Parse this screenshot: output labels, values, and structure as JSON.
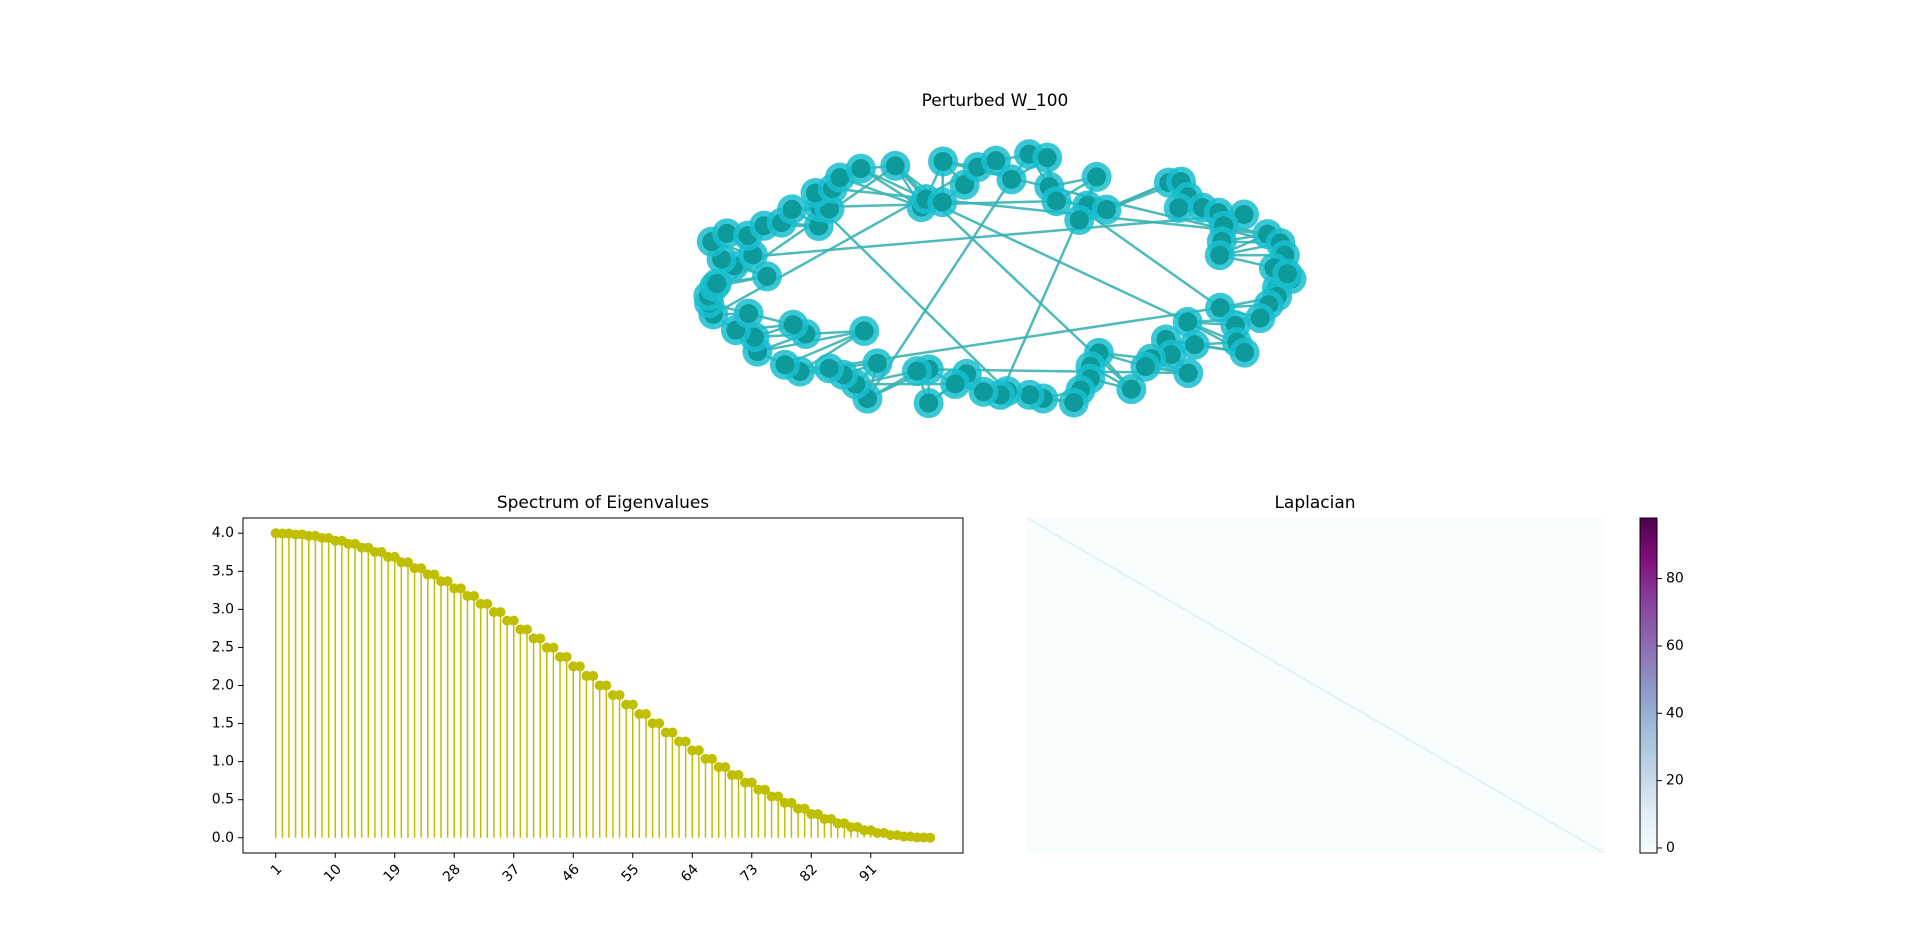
{
  "chart_data": [
    {
      "type": "network",
      "title": "Perturbed W_100",
      "node_color": "#17becf",
      "node_core_color": "#0e9a9a",
      "edge_color": "#3bb3b3"
    },
    {
      "type": "stem",
      "title": "Spectrum of Eigenvalues",
      "color": "#bfbf00",
      "x": [
        1,
        2,
        3,
        4,
        5,
        6,
        7,
        8,
        9,
        10,
        11,
        12,
        13,
        14,
        15,
        16,
        17,
        18,
        19,
        20,
        21,
        22,
        23,
        24,
        25,
        26,
        27,
        28,
        29,
        30,
        31,
        32,
        33,
        34,
        35,
        36,
        37,
        38,
        39,
        40,
        41,
        42,
        43,
        44,
        45,
        46,
        47,
        48,
        49,
        50,
        51,
        52,
        53,
        54,
        55,
        56,
        57,
        58,
        59,
        60,
        61,
        62,
        63,
        64,
        65,
        66,
        67,
        68,
        69,
        70,
        71,
        72,
        73,
        74,
        75,
        76,
        77,
        78,
        79,
        80,
        81,
        82,
        83,
        84,
        85,
        86,
        87,
        88,
        89,
        90,
        91,
        92,
        93,
        94,
        95,
        96,
        97,
        98,
        99,
        100
      ],
      "values": [
        4,
        3.996,
        3.996,
        3.984,
        3.984,
        3.965,
        3.965,
        3.937,
        3.937,
        3.902,
        3.902,
        3.86,
        3.86,
        3.81,
        3.81,
        3.753,
        3.753,
        3.689,
        3.689,
        3.618,
        3.618,
        3.541,
        3.541,
        3.458,
        3.458,
        3.369,
        3.369,
        3.275,
        3.275,
        3.176,
        3.176,
        3.072,
        3.072,
        2.964,
        2.964,
        2.852,
        2.852,
        2.736,
        2.736,
        2.618,
        2.618,
        2.497,
        2.497,
        2.375,
        2.375,
        2.251,
        2.251,
        2.126,
        2.126,
        2,
        2,
        1.874,
        1.874,
        1.749,
        1.749,
        1.625,
        1.625,
        1.503,
        1.503,
        1.382,
        1.382,
        1.264,
        1.264,
        1.148,
        1.148,
        1.036,
        1.036,
        0.928,
        0.928,
        0.824,
        0.824,
        0.725,
        0.725,
        0.631,
        0.631,
        0.542,
        0.542,
        0.459,
        0.459,
        0.382,
        0.382,
        0.311,
        0.311,
        0.247,
        0.247,
        0.19,
        0.19,
        0.14,
        0.14,
        0.098,
        0.098,
        0.063,
        0.063,
        0.035,
        0.035,
        0.016,
        0.016,
        0.004,
        0.004,
        0
      ],
      "xlim": [
        -3.95,
        104.95
      ],
      "xticks": [
        1,
        10,
        19,
        28,
        37,
        46,
        55,
        64,
        73,
        82,
        91
      ],
      "ylim": [
        -0.2,
        4.2
      ],
      "yticks": [
        {
          "value": 0,
          "label": "0.0"
        },
        0.5,
        {
          "value": 1,
          "label": "1.0"
        },
        1.5,
        {
          "value": 2,
          "label": "2.0"
        },
        2.5,
        {
          "value": 3,
          "label": "3.0"
        },
        3.5,
        {
          "value": 4,
          "label": "4.0"
        }
      ]
    },
    {
      "type": "heatmap",
      "title": "Laplacian",
      "clim": [
        -1.5,
        98
      ],
      "cticks": [
        0,
        20,
        40,
        60,
        80
      ],
      "colors": [
        "#f7fcfd",
        "#e0ecf4",
        "#bfd3e6",
        "#9ebcda",
        "#8c96c6",
        "#8c6bb1",
        "#88419d",
        "#810f7c",
        "#4d004b"
      ]
    }
  ]
}
